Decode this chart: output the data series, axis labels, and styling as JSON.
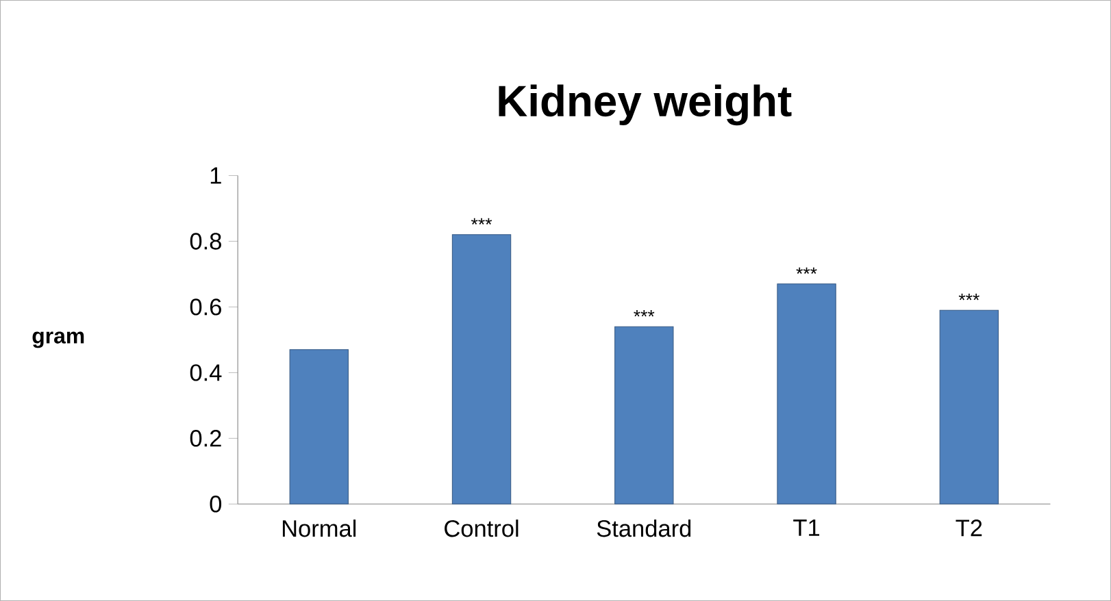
{
  "chart_data": {
    "type": "bar",
    "title": "Kidney weight",
    "ylabel": "gram",
    "categories": [
      "Normal",
      "Control",
      "Standard",
      "T1",
      "T2"
    ],
    "values": [
      0.47,
      0.82,
      0.54,
      0.67,
      0.59
    ],
    "color": "#4f81bd",
    "ylim": [
      0,
      1
    ],
    "yticks": [
      0,
      0.2,
      0.4,
      0.6,
      0.8,
      1
    ],
    "grid": false,
    "annotations": [
      {
        "text": "***",
        "x": "Control",
        "y": 0.82
      },
      {
        "text": "***",
        "x": "Standard",
        "y": 0.54
      },
      {
        "text": "***",
        "x": "T1",
        "y": 0.67
      },
      {
        "text": "***",
        "x": "T2",
        "y": 0.59
      }
    ]
  }
}
